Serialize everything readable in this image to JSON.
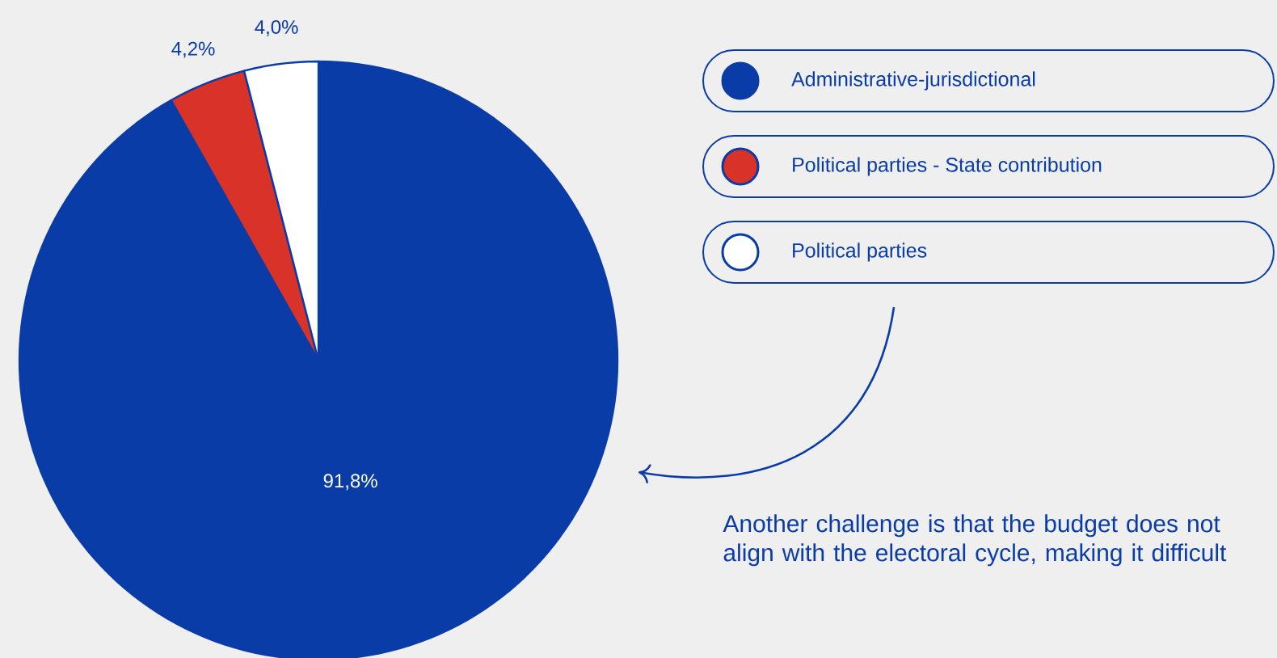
{
  "chart_data": {
    "type": "pie",
    "categories": [
      "Administrative-jurisdictional",
      "Political parties - State contribution",
      "Political parties"
    ],
    "values": [
      91.8,
      4.2,
      4.0
    ],
    "colors": [
      "#0a3ca8",
      "#d93228",
      "#ffffff"
    ],
    "value_labels": [
      "91,8%",
      "4,2%",
      "4,0%"
    ],
    "legend": "right",
    "annotations": [
      "Another challenge is that the budget does not align with the electoral cycle, making it difficult"
    ]
  }
}
